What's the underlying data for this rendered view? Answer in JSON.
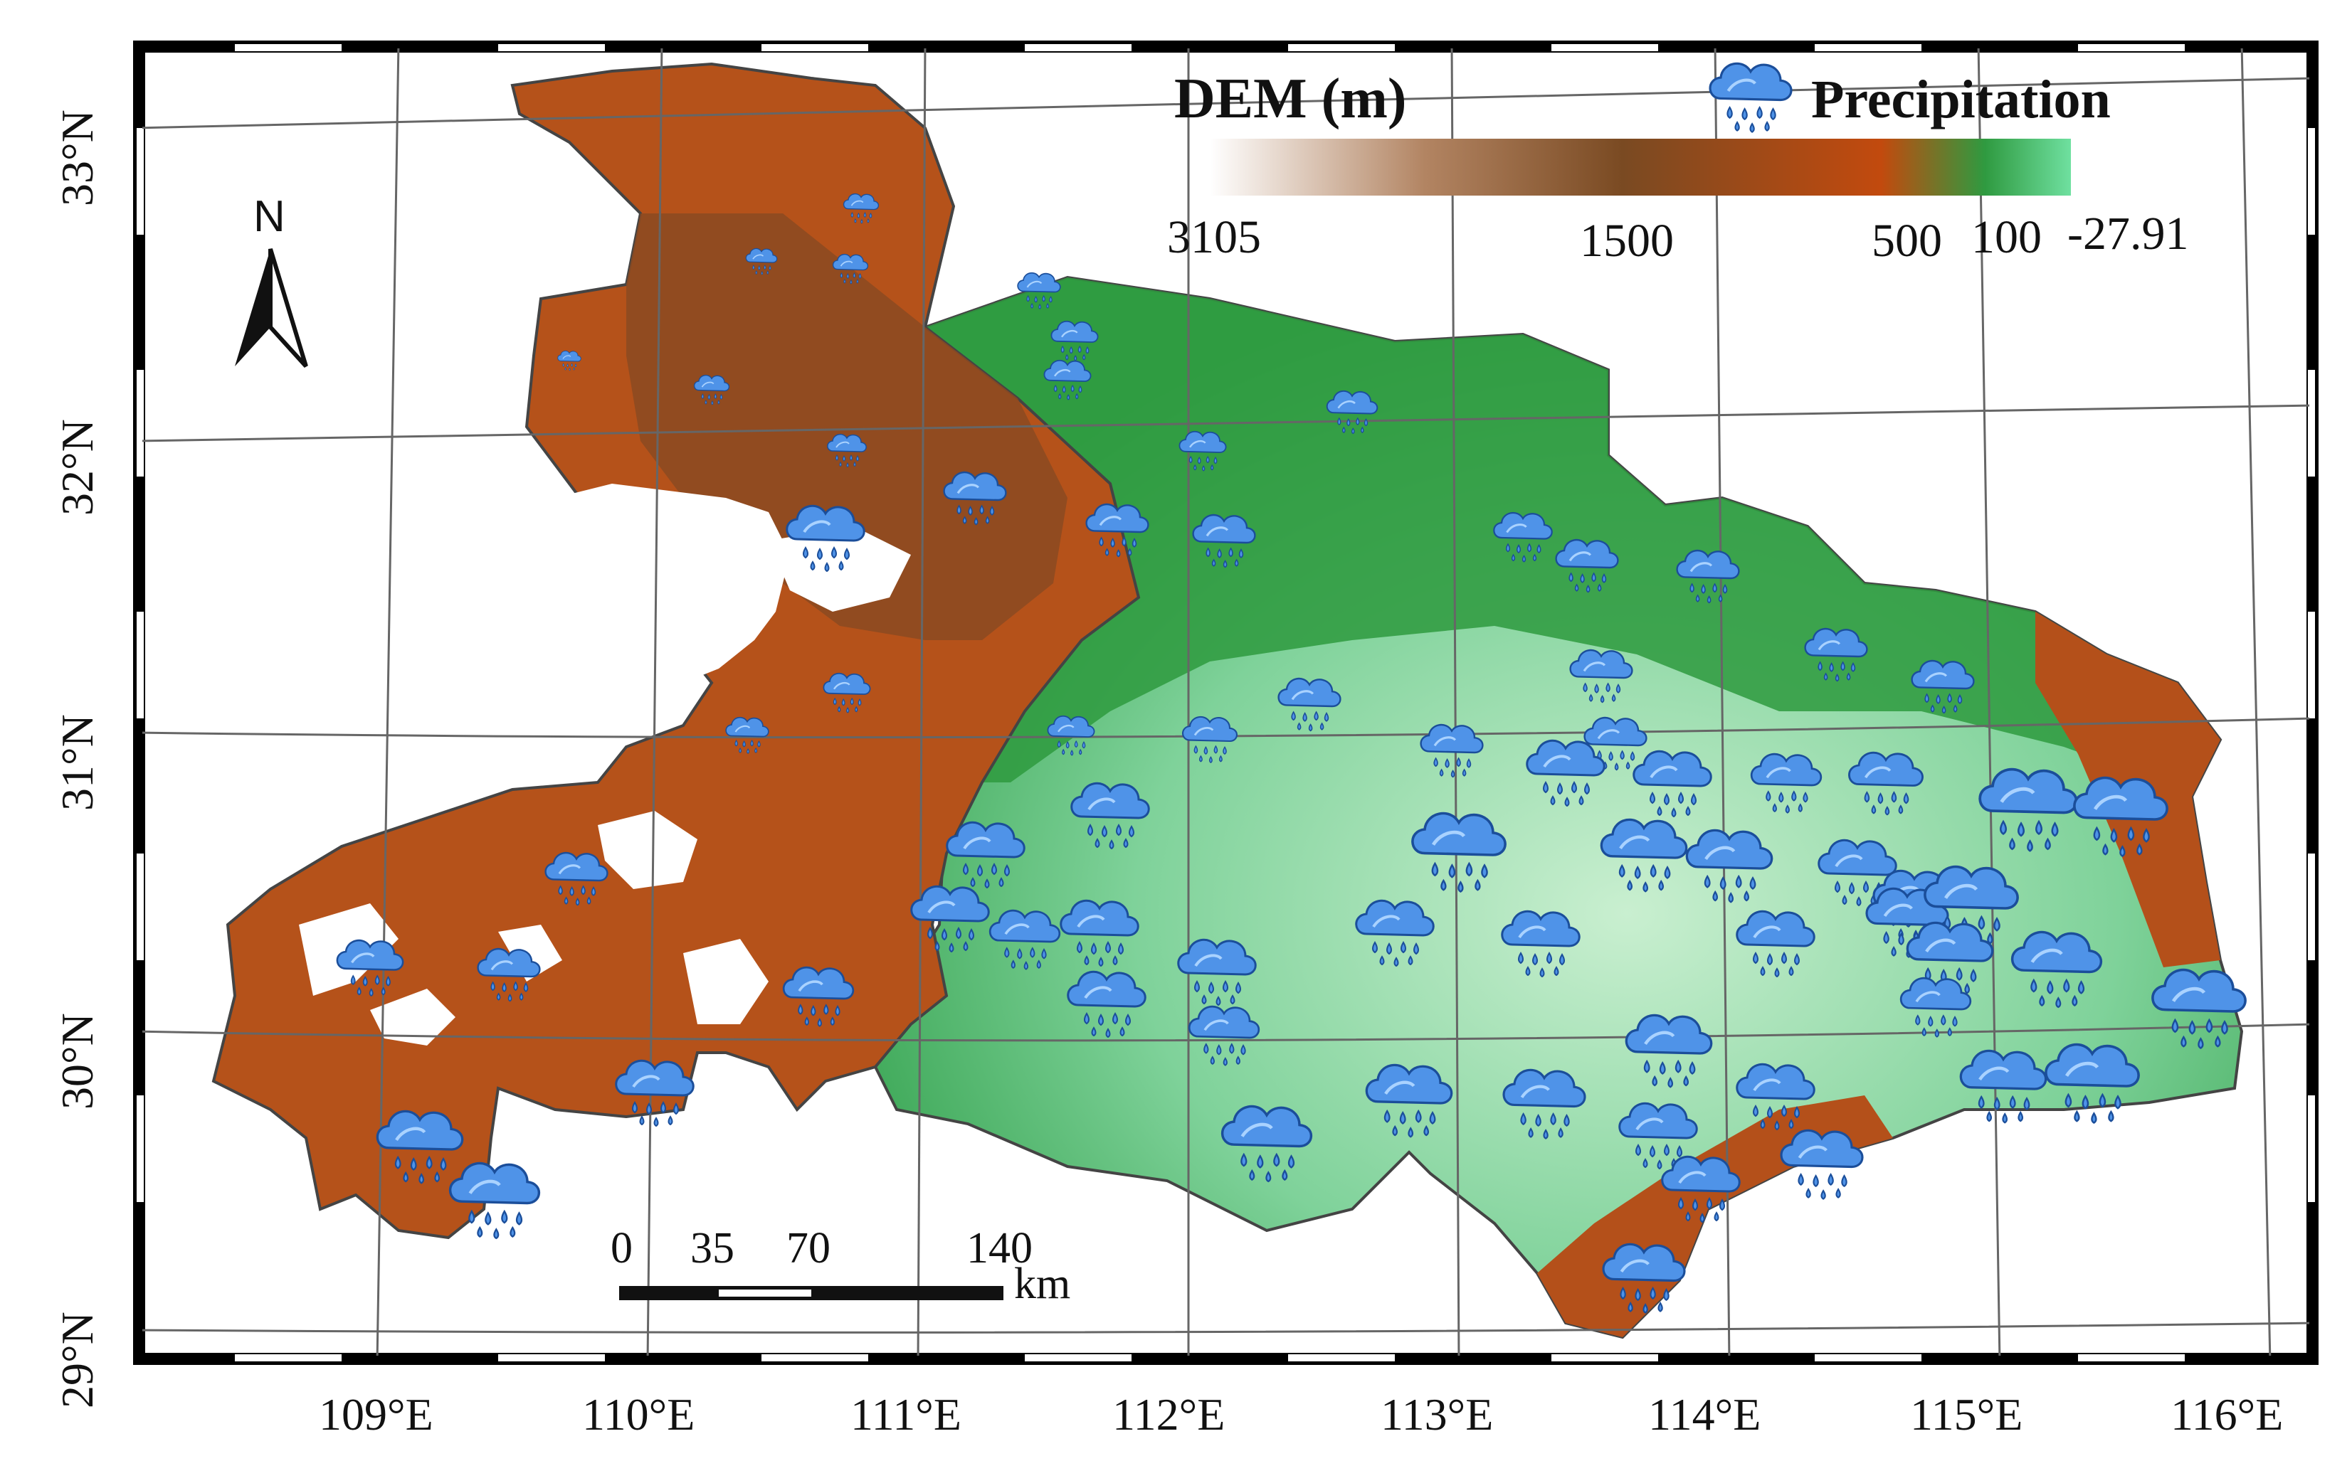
{
  "legend": {
    "dem_title": "DEM (m)",
    "dem_ticks": [
      "3105",
      "1500",
      "500",
      "100",
      "-27.91"
    ],
    "precip_label": "Precipitation",
    "colors": {
      "high": "#ffffff",
      "mid_high": "#8b5a2b",
      "mid": "#c24a0e",
      "low": "#2e9e44",
      "lowest": "#6fd08f"
    }
  },
  "north_arrow": {
    "label": "N"
  },
  "scale_bar": {
    "ticks": [
      "0",
      "35",
      "70",
      "140"
    ],
    "unit": "km"
  },
  "axes": {
    "lat_labels": [
      "33°N",
      "32°N",
      "31°N",
      "30°N",
      "29°N"
    ],
    "lon_labels": [
      "109°E",
      "110°E",
      "111°E",
      "112°E",
      "113°E",
      "114°E",
      "115°E",
      "116°E"
    ]
  },
  "icons": {
    "station": "rain-cloud-icon",
    "north": "north-arrow-icon"
  }
}
